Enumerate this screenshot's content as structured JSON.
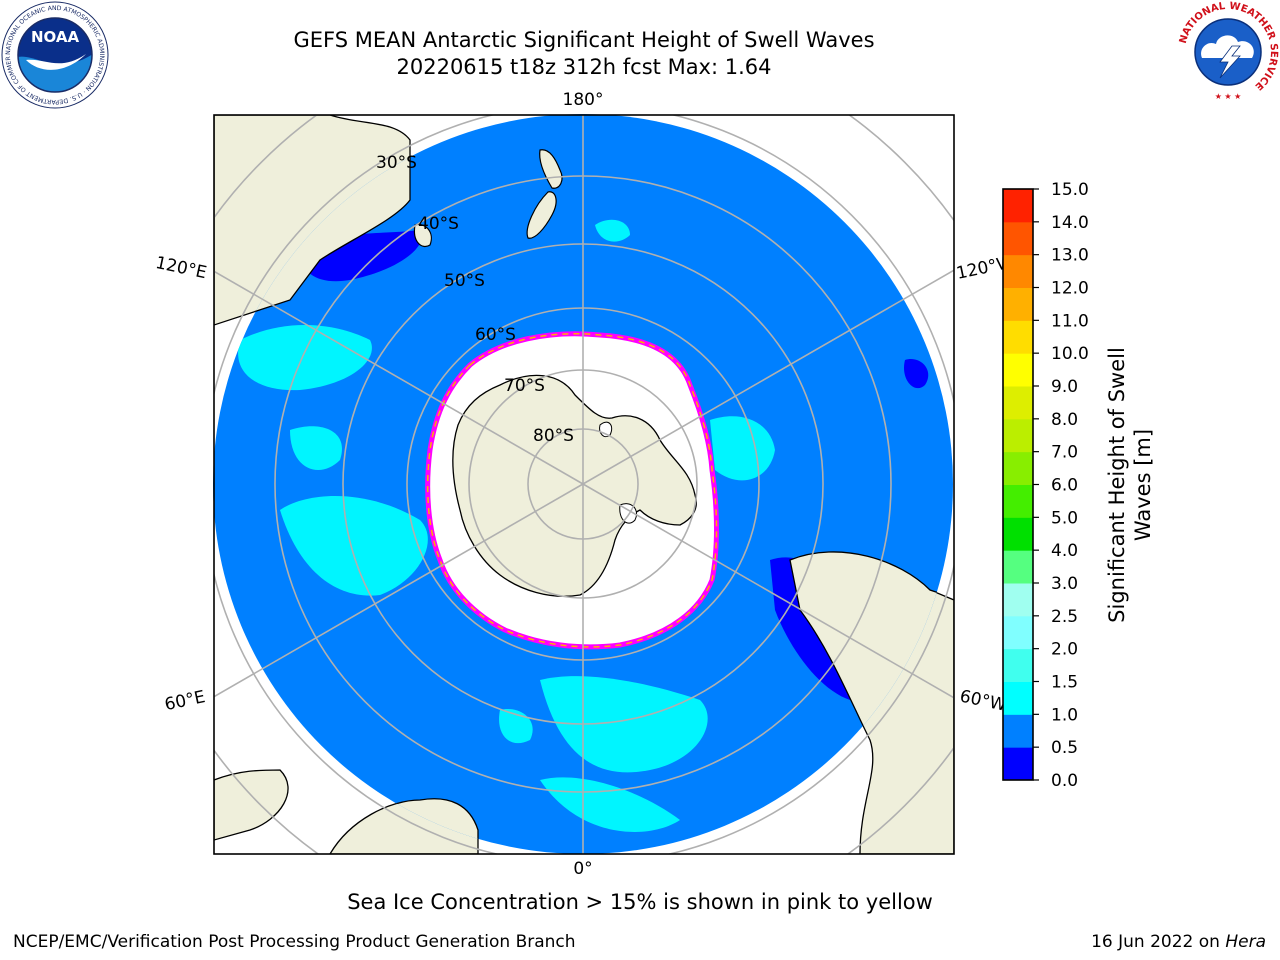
{
  "title": {
    "line1": "GEFS MEAN Antarctic Significant Height of Swell Waves",
    "line2": "20220615 t18z 312h fcst   Max: 1.64"
  },
  "map": {
    "projection": "south polar stereographic",
    "longitude_labels": {
      "top": "180°",
      "left_upper": "120°E",
      "right_upper": "120°W",
      "left_lower": "60°E",
      "right_lower": "60°W",
      "bottom": "0°"
    },
    "latitude_labels": [
      "30°S",
      "40°S",
      "50°S",
      "60°S",
      "70°S",
      "80°S"
    ],
    "ocean_color": "#0080ff",
    "land_color": "#efefdb",
    "sea_ice_color": "#ffffff",
    "sea_ice_edge_colors": [
      "#ff00ff",
      "#ff66cc",
      "#ffb000"
    ]
  },
  "colorbar": {
    "label_line1": "Significant Height of Swell",
    "label_line2": "Waves [m]",
    "ticks": [
      "0.0",
      "0.5",
      "1.0",
      "1.5",
      "2.0",
      "2.5",
      "3.0",
      "4.0",
      "5.0",
      "6.0",
      "7.0",
      "8.0",
      "9.0",
      "10.0",
      "11.0",
      "12.0",
      "13.0",
      "14.0",
      "15.0"
    ],
    "colors": [
      "#0000ff",
      "#0080ff",
      "#00ffff",
      "#40ffee",
      "#80ffff",
      "#a0fff0",
      "#55ff80",
      "#00e000",
      "#44ee00",
      "#88ee00",
      "#bbee00",
      "#ddee00",
      "#ffff00",
      "#ffdd00",
      "#ffb000",
      "#ff8800",
      "#ff5500",
      "#ff2200"
    ]
  },
  "note": "Sea Ice Concentration > 15% is shown in pink to yellow",
  "footer": {
    "left": "NCEP/EMC/Verification Post Processing Product Generation Branch",
    "right_prefix": "16 Jun 2022 on ",
    "right_host": "Hera"
  },
  "logos": {
    "noaa_text": "NOAA",
    "noaa_ring": "NATIONAL OCEANIC AND ATMOSPHERIC ADMINISTRATION · U.S. DEPARTMENT OF COMMERCE ·",
    "nws_ring": "NATIONAL WEATHER SERVICE"
  }
}
